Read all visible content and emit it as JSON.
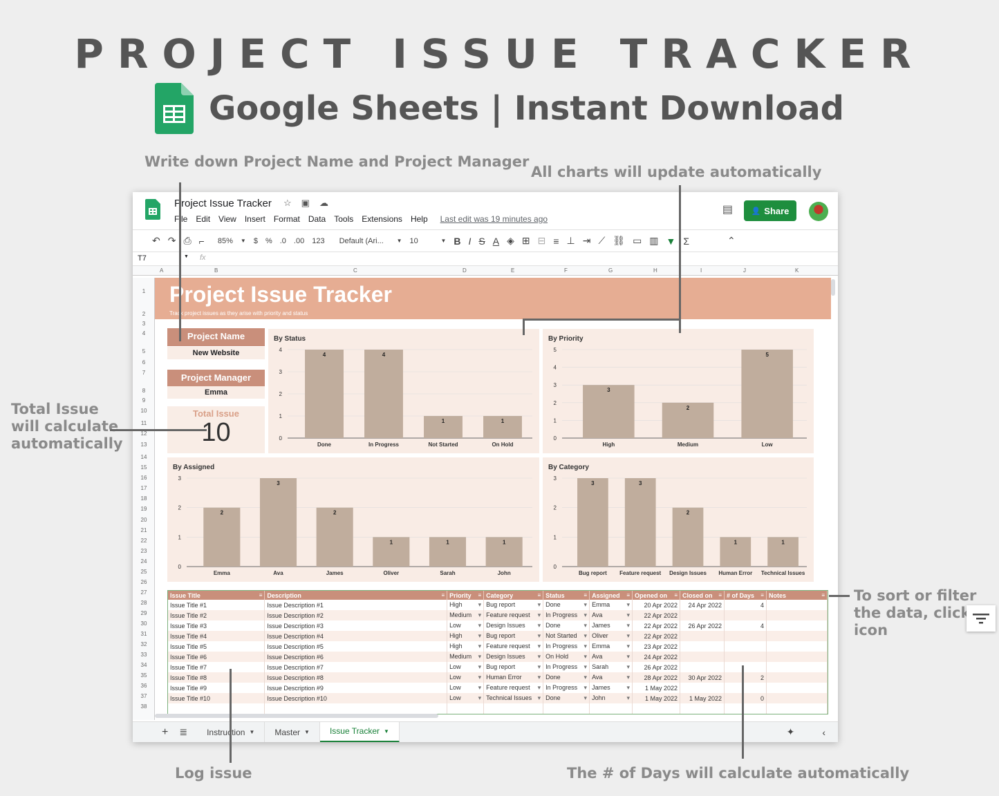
{
  "hero": {
    "title": "PROJECT ISSUE TRACKER",
    "subtitle": "Google Sheets | Instant Download"
  },
  "callouts": {
    "project_name": "Write down Project Name and Project Manager",
    "charts": "All charts will update automatically",
    "total": "Total Issue will calculate automatically",
    "filter": "To sort or filter the data, click icon",
    "log": "Log issue",
    "days": "The # of Days will calculate automatically"
  },
  "window": {
    "doc_title": "Project Issue Tracker",
    "menus": [
      "File",
      "Edit",
      "View",
      "Insert",
      "Format",
      "Data",
      "Tools",
      "Extensions",
      "Help"
    ],
    "last_edit": "Last edit was 19 minutes ago",
    "share_label": "Share",
    "toolbar": {
      "zoom": "85%",
      "currency": "$",
      "percent": "%",
      "dec_less": ".0",
      "dec_more": ".00",
      "format": "123",
      "font": "Default (Ari...",
      "font_size": "10"
    },
    "cell_ref": "T7",
    "fx": "fx"
  },
  "sheet": {
    "banner_title": "Project Issue Tracker",
    "banner_subtitle": "Track project issues as they arise with priority and status",
    "project_name_label": "Project Name",
    "project_name_value": "New Website",
    "project_manager_label": "Project Manager",
    "project_manager_value": "Emma",
    "total_label": "Total Issue",
    "total_value": "10"
  },
  "colors": {
    "bar": "#c0ad9d",
    "panel": "#f9ece5",
    "header": "#c98f7b",
    "banner": "#e6ad93"
  },
  "chart_data": [
    {
      "type": "bar",
      "title": "By Status",
      "categories": [
        "Done",
        "In Progress",
        "Not Started",
        "On Hold"
      ],
      "values": [
        4,
        4,
        1,
        1
      ],
      "ylim": [
        0,
        4
      ],
      "yticks": [
        0,
        1,
        2,
        3,
        4
      ]
    },
    {
      "type": "bar",
      "title": "By Priority",
      "categories": [
        "High",
        "Medium",
        "Low"
      ],
      "values": [
        3,
        2,
        5
      ],
      "ylim": [
        0,
        5
      ],
      "yticks": [
        0,
        1,
        2,
        3,
        4,
        5
      ]
    },
    {
      "type": "bar",
      "title": "By Assigned",
      "categories": [
        "Emma",
        "Ava",
        "James",
        "Oliver",
        "Sarah",
        "John"
      ],
      "values": [
        2,
        3,
        2,
        1,
        1,
        1
      ],
      "ylim": [
        0,
        3
      ],
      "yticks": [
        0,
        1,
        2,
        3
      ]
    },
    {
      "type": "bar",
      "title": "By Category",
      "categories": [
        "Bug report",
        "Feature request",
        "Design Issues",
        "Human Error",
        "Technical Issues"
      ],
      "values": [
        3,
        3,
        2,
        1,
        1
      ],
      "ylim": [
        0,
        3
      ],
      "yticks": [
        0,
        1,
        2,
        3
      ]
    }
  ],
  "table": {
    "headers": [
      "Issue Title",
      "Description",
      "Priority",
      "Category",
      "Status",
      "Assigned",
      "Opened on",
      "Closed on",
      "# of Days",
      "Notes"
    ],
    "rows": [
      [
        "Issue Title #1",
        "Issue Description #1",
        "High",
        "Bug report",
        "Done",
        "Emma",
        "20 Apr 2022",
        "24 Apr 2022",
        "4",
        ""
      ],
      [
        "Issue Title #2",
        "Issue Description #2",
        "Medium",
        "Feature request",
        "In Progress",
        "Ava",
        "22 Apr 2022",
        "",
        "",
        ""
      ],
      [
        "Issue Title #3",
        "Issue Description #3",
        "Low",
        "Design Issues",
        "Done",
        "James",
        "22 Apr 2022",
        "26 Apr 2022",
        "4",
        ""
      ],
      [
        "Issue Title #4",
        "Issue Description #4",
        "High",
        "Bug report",
        "Not Started",
        "Oliver",
        "22 Apr 2022",
        "",
        "",
        ""
      ],
      [
        "Issue Title #5",
        "Issue Description #5",
        "High",
        "Feature request",
        "In Progress",
        "Emma",
        "23 Apr 2022",
        "",
        "",
        ""
      ],
      [
        "Issue Title #6",
        "Issue Description #6",
        "Medium",
        "Design Issues",
        "On Hold",
        "Ava",
        "24 Apr 2022",
        "",
        "",
        ""
      ],
      [
        "Issue Title #7",
        "Issue Description #7",
        "Low",
        "Bug report",
        "In Progress",
        "Sarah",
        "26 Apr 2022",
        "",
        "",
        ""
      ],
      [
        "Issue Title #8",
        "Issue Description #8",
        "Low",
        "Human Error",
        "Done",
        "Ava",
        "28 Apr 2022",
        "30 Apr 2022",
        "2",
        ""
      ],
      [
        "Issue Title #9",
        "Issue Description #9",
        "Low",
        "Feature request",
        "In Progress",
        "James",
        "1 May 2022",
        "",
        "",
        ""
      ],
      [
        "Issue Title #10",
        "Issue Description #10",
        "Low",
        "Technical Issues",
        "Done",
        "John",
        "1 May 2022",
        "1 May 2022",
        "0",
        ""
      ]
    ]
  },
  "tabs": [
    "Instruction",
    "Master",
    "Issue Tracker"
  ],
  "active_tab": "Issue Tracker"
}
